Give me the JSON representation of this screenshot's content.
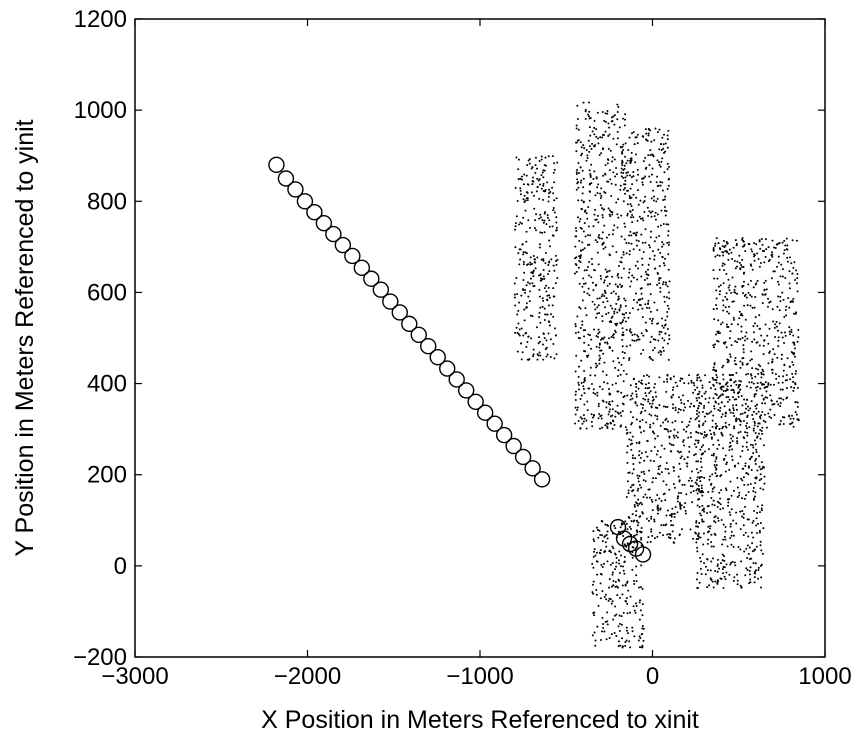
{
  "chart_data": {
    "type": "scatter",
    "title": "",
    "xlabel": "X Position in Meters Referenced to xinit",
    "ylabel": "Y Position in Meters Referenced to yinit",
    "xlim": [
      -3000,
      1000
    ],
    "ylim": [
      -200,
      1200
    ],
    "x_ticks": [
      -3000,
      -2000,
      -1000,
      0,
      1000
    ],
    "y_ticks": [
      -200,
      0,
      200,
      400,
      600,
      800,
      1000,
      1200
    ],
    "x_tick_labels": [
      "−3000",
      "−2000",
      "−1000",
      "0",
      "1000"
    ],
    "y_tick_labels": [
      "−200",
      "0",
      "200",
      "400",
      "600",
      "800",
      "1000",
      "1200"
    ],
    "grid": false,
    "legend": "none",
    "series": [
      {
        "marker": "open-circle",
        "x": [
          -2180,
          -2125,
          -2070,
          -2015,
          -1960,
          -1905,
          -1850,
          -1795,
          -1740,
          -1685,
          -1630,
          -1575,
          -1520,
          -1465,
          -1410,
          -1355,
          -1300,
          -1245,
          -1190,
          -1135,
          -1080,
          -1025,
          -970,
          -915,
          -860,
          -805,
          -750,
          -695,
          -640
        ],
        "y": [
          880,
          850,
          826,
          800,
          776,
          752,
          728,
          704,
          680,
          654,
          630,
          606,
          580,
          556,
          531,
          507,
          482,
          458,
          433,
          409,
          385,
          360,
          336,
          312,
          287,
          263,
          239,
          214,
          190
        ]
      },
      {
        "marker": "open-circle",
        "x": [
          -200,
          -165,
          -130,
          -95,
          -55
        ],
        "y": [
          85,
          60,
          48,
          38,
          25
        ]
      },
      {
        "marker": "dot",
        "note_regions": [
          {
            "x": [
              -800,
              -550
            ],
            "y": [
              450,
              900
            ]
          },
          {
            "x": [
              -450,
              -150
            ],
            "y": [
              300,
              1020
            ]
          },
          {
            "x": [
              -150,
              100
            ],
            "y": [
              450,
              960
            ]
          },
          {
            "x": [
              -350,
              -50
            ],
            "y": [
              -180,
              100
            ]
          },
          {
            "x": [
              -150,
              300
            ],
            "y": [
              50,
              420
            ]
          },
          {
            "x": [
              250,
              650
            ],
            "y": [
              -50,
              420
            ]
          },
          {
            "x": [
              350,
              850
            ],
            "y": [
              300,
              720
            ]
          }
        ]
      }
    ]
  }
}
